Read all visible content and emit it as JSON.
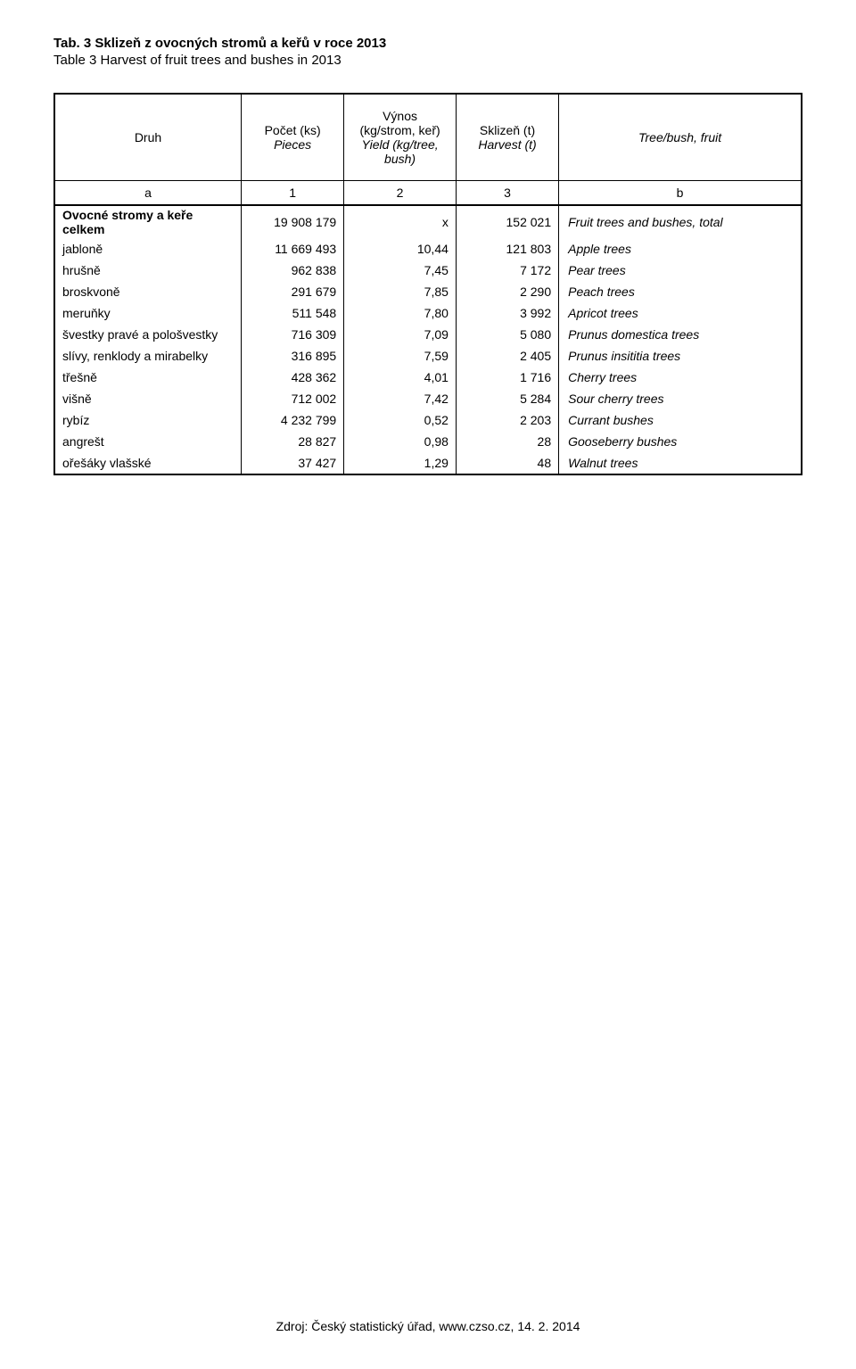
{
  "title_cz": "Tab. 3  Sklizeň z ovocných stromů a keřů v roce 2013",
  "title_en": "Table 3  Harvest of fruit trees and bushes in 2013",
  "header": {
    "druh": "Druh",
    "pocet_cz": "Počet (ks)",
    "pocet_en": "Pieces",
    "vynos_l1": "Výnos",
    "vynos_l2": "(kg/strom, keř)",
    "vynos_l3": "Yield (kg/tree,",
    "vynos_l4": "bush)",
    "skl_cz": "Sklizeň (t)",
    "skl_en": "Harvest (t)",
    "tree": "Tree/bush, fruit"
  },
  "sub": {
    "a": "a",
    "c1": "1",
    "c2": "2",
    "c3": "3",
    "b": "b"
  },
  "rows": [
    {
      "label": "Ovocné stromy a keře celkem",
      "count": "19 908 179",
      "yield": "x",
      "harvest": "152 021",
      "en": "Fruit trees and bushes, total",
      "total": true
    },
    {
      "label": "jabloně",
      "count": "11 669 493",
      "yield": "10,44",
      "harvest": "121 803",
      "en": "Apple trees"
    },
    {
      "label": "hrušně",
      "count": "962 838",
      "yield": "7,45",
      "harvest": "7 172",
      "en": "Pear trees"
    },
    {
      "label": "broskvoně",
      "count": "291 679",
      "yield": "7,85",
      "harvest": "2 290",
      "en": "Peach trees"
    },
    {
      "label": "meruňky",
      "count": "511 548",
      "yield": "7,80",
      "harvest": "3 992",
      "en": "Apricot trees"
    },
    {
      "label": "švestky pravé a pološvestky",
      "count": "716 309",
      "yield": "7,09",
      "harvest": "5 080",
      "en": "Prunus domestica trees"
    },
    {
      "label": "slívy, renklody a mirabelky",
      "count": "316 895",
      "yield": "7,59",
      "harvest": "2 405",
      "en": "Prunus insititia trees"
    },
    {
      "label": "třešně",
      "count": "428 362",
      "yield": "4,01",
      "harvest": "1 716",
      "en": "Cherry trees"
    },
    {
      "label": "višně",
      "count": "712 002",
      "yield": "7,42",
      "harvest": "5 284",
      "en": "Sour cherry trees"
    },
    {
      "label": "rybíz",
      "count": "4 232 799",
      "yield": "0,52",
      "harvest": "2 203",
      "en": "Currant bushes"
    },
    {
      "label": "angrešt",
      "count": "28 827",
      "yield": "0,98",
      "harvest": "28",
      "en": "Gooseberry bushes"
    },
    {
      "label": "ořešáky vlašské",
      "count": "37 427",
      "yield": "1,29",
      "harvest": "48",
      "en": "Walnut trees",
      "last": true
    }
  ],
  "footer": "Zdroj: Český statistický úřad, www.czso.cz, 14. 2. 2014"
}
